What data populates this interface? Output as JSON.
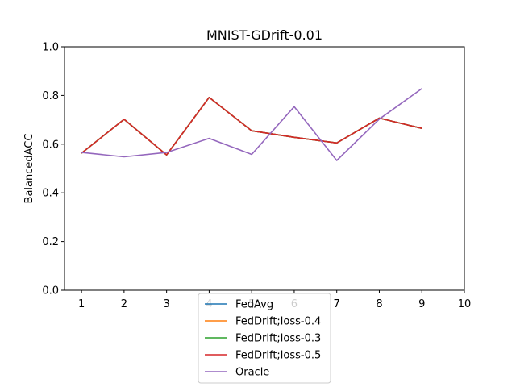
{
  "chart_data": {
    "type": "line",
    "title": "MNIST-GDrift-0.01",
    "xlabel": "",
    "ylabel": "BalancedACC",
    "xlim": [
      0.6,
      10
    ],
    "ylim": [
      0,
      1.0
    ],
    "xticks": [
      1,
      2,
      3,
      4,
      5,
      6,
      7,
      8,
      9,
      10
    ],
    "yticks": [
      "0.0",
      "0.2",
      "0.4",
      "0.6",
      "0.8",
      "1.0"
    ],
    "grid": false,
    "legend_position": "bottom-center",
    "x": [
      1,
      2,
      3,
      4,
      5,
      6,
      7,
      8,
      9
    ],
    "series": [
      {
        "name": "FedAvg",
        "color": "#1f77b4",
        "values": [
          0.563,
          0.702,
          0.556,
          0.792,
          0.655,
          0.628,
          0.605,
          0.707,
          0.665
        ]
      },
      {
        "name": "FedDrift;loss-0.4",
        "color": "#ff7f0e",
        "values": [
          0.563,
          0.702,
          0.556,
          0.792,
          0.655,
          0.628,
          0.605,
          0.707,
          0.665
        ]
      },
      {
        "name": "FedDrift;loss-0.3",
        "color": "#2ca02c",
        "values": [
          0.563,
          0.702,
          0.556,
          0.792,
          0.655,
          0.628,
          0.605,
          0.707,
          0.665
        ]
      },
      {
        "name": "FedDrift;loss-0.5",
        "color": "#d62728",
        "values": [
          0.563,
          0.702,
          0.556,
          0.792,
          0.655,
          0.628,
          0.605,
          0.707,
          0.665
        ]
      },
      {
        "name": "Oracle",
        "color": "#9467bd",
        "values": [
          0.566,
          0.548,
          0.566,
          0.624,
          0.558,
          0.754,
          0.533,
          0.703,
          0.828
        ]
      }
    ]
  }
}
